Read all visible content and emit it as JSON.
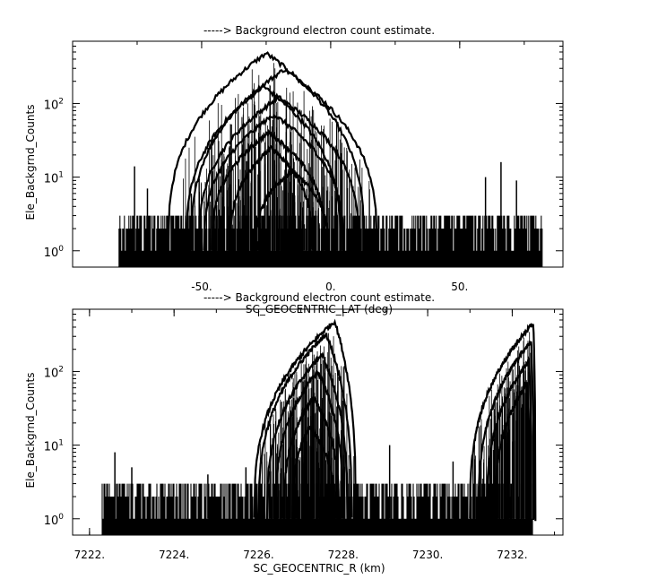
{
  "chart_data": [
    {
      "type": "line",
      "title": "-----> Background electron count estimate.",
      "xlabel": "SC_GEOCENTRIC_LAT (deg)",
      "ylabel": "Ele_Backgrnd_Counts",
      "xlim": [
        -100,
        90
      ],
      "ylim": [
        0.6,
        700
      ],
      "yscale": "log",
      "xticks": [
        -50,
        0,
        50
      ],
      "xticklabels": [
        "-50.",
        "0.",
        "50."
      ],
      "yticks": [
        1,
        10,
        100
      ],
      "yticklabels": [
        "10",
        "10",
        "10"
      ],
      "ytickexponents": [
        "0",
        "1",
        "2"
      ],
      "noise": {
        "xmin": -82,
        "xmax": 82,
        "floor_max": 3,
        "peaks": [
          {
            "x": -76,
            "y": 14
          },
          {
            "x": -71,
            "y": 7
          },
          {
            "x": -54,
            "y": 6
          },
          {
            "x": -39,
            "y": 8
          },
          {
            "x": 60,
            "y": 10
          },
          {
            "x": 66,
            "y": 16
          },
          {
            "x": 72,
            "y": 9
          }
        ]
      },
      "series": [
        {
          "center": -25,
          "halfwidth": 38,
          "peak": 480
        },
        {
          "center": -18,
          "halfwidth": 36,
          "peak": 290
        },
        {
          "center": -26,
          "halfwidth": 30,
          "peak": 170
        },
        {
          "center": -20,
          "halfwidth": 31,
          "peak": 120
        },
        {
          "center": -22,
          "halfwidth": 27,
          "peak": 70
        },
        {
          "center": -24,
          "halfwidth": 22,
          "peak": 40
        },
        {
          "center": -23,
          "halfwidth": 16,
          "peak": 25
        },
        {
          "center": -15,
          "halfwidth": 14,
          "peak": 12
        }
      ],
      "grid": false
    },
    {
      "type": "line",
      "title": "-----> Background electron count estimate.",
      "xlabel": "SC_GEOCENTRIC_R (km)",
      "ylabel": "Ele_Backgrnd_Counts",
      "xlim": [
        7221.6,
        7233.2
      ],
      "ylim": [
        0.6,
        700
      ],
      "yscale": "log",
      "xticks": [
        7222,
        7224,
        7226,
        7228,
        7230,
        7232
      ],
      "xticklabels": [
        "7222.",
        "7224.",
        "7226.",
        "7228.",
        "7230.",
        "7232."
      ],
      "yticks": [
        1,
        10,
        100
      ],
      "yticklabels": [
        "10",
        "10",
        "10"
      ],
      "ytickexponents": [
        "0",
        "1",
        "2"
      ],
      "noise": {
        "xmin": 7222.3,
        "xmax": 7232.5,
        "floor_max": 3,
        "peaks": [
          {
            "x": 7222.6,
            "y": 8
          },
          {
            "x": 7223.0,
            "y": 5
          },
          {
            "x": 7224.8,
            "y": 4
          },
          {
            "x": 7225.7,
            "y": 5
          },
          {
            "x": 7229.1,
            "y": 10
          },
          {
            "x": 7230.6,
            "y": 6
          }
        ]
      },
      "series": [
        {
          "x0": 7225.9,
          "xp": 7227.8,
          "x1": 7228.3,
          "peak": 480
        },
        {
          "x0": 7226.0,
          "xp": 7227.6,
          "x1": 7228.2,
          "peak": 320
        },
        {
          "x0": 7226.2,
          "xp": 7227.5,
          "x1": 7228.1,
          "peak": 170
        },
        {
          "x0": 7226.4,
          "xp": 7227.4,
          "x1": 7228.0,
          "peak": 100
        },
        {
          "x0": 7226.6,
          "xp": 7227.3,
          "x1": 7227.9,
          "peak": 45
        },
        {
          "x0": 7226.8,
          "xp": 7227.2,
          "x1": 7227.8,
          "peak": 18
        },
        {
          "x0": 7231.0,
          "xp": 7232.5,
          "x1": 7232.55,
          "peak": 450
        },
        {
          "x0": 7231.2,
          "xp": 7232.45,
          "x1": 7232.5,
          "peak": 260
        },
        {
          "x0": 7231.4,
          "xp": 7232.4,
          "x1": 7232.45,
          "peak": 140
        },
        {
          "x0": 7231.6,
          "xp": 7232.35,
          "x1": 7232.4,
          "peak": 70
        }
      ],
      "grid": false
    }
  ]
}
